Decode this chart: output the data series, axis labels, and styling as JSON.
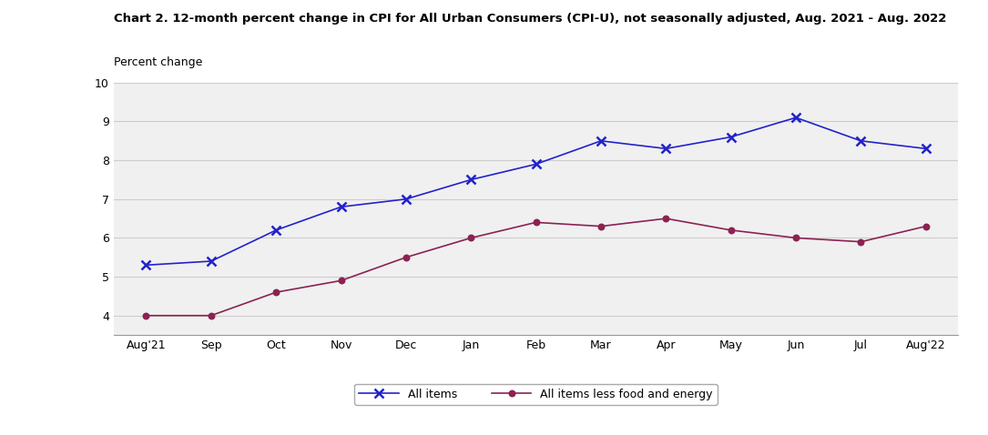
{
  "title": "Chart 2. 12-month percent change in CPI for All Urban Consumers (CPI-U), not seasonally adjusted, Aug. 2021 - Aug. 2022",
  "ylabel": "Percent change",
  "x_labels": [
    "Aug'21",
    "Sep",
    "Oct",
    "Nov",
    "Dec",
    "Jan",
    "Feb",
    "Mar",
    "Apr",
    "May",
    "Jun",
    "Jul",
    "Aug'22"
  ],
  "all_items": [
    5.3,
    5.4,
    6.2,
    6.8,
    7.0,
    7.5,
    7.9,
    8.5,
    8.3,
    8.6,
    9.1,
    8.5,
    8.3
  ],
  "less_food_energy": [
    4.0,
    4.0,
    4.6,
    4.9,
    5.5,
    6.0,
    6.4,
    6.3,
    6.5,
    6.2,
    6.0,
    5.9,
    6.3
  ],
  "ylim": [
    3.5,
    10
  ],
  "yticks": [
    4,
    5,
    6,
    7,
    8,
    9,
    10
  ],
  "all_items_color": "#2222cc",
  "less_food_color": "#8B2252",
  "bg_color": "#f0f0f0",
  "grid_color": "#cccccc",
  "legend_label_all": "All items",
  "legend_label_less": "All items less food and energy",
  "title_fontsize": 9.5,
  "axis_label_fontsize": 9,
  "tick_fontsize": 9
}
